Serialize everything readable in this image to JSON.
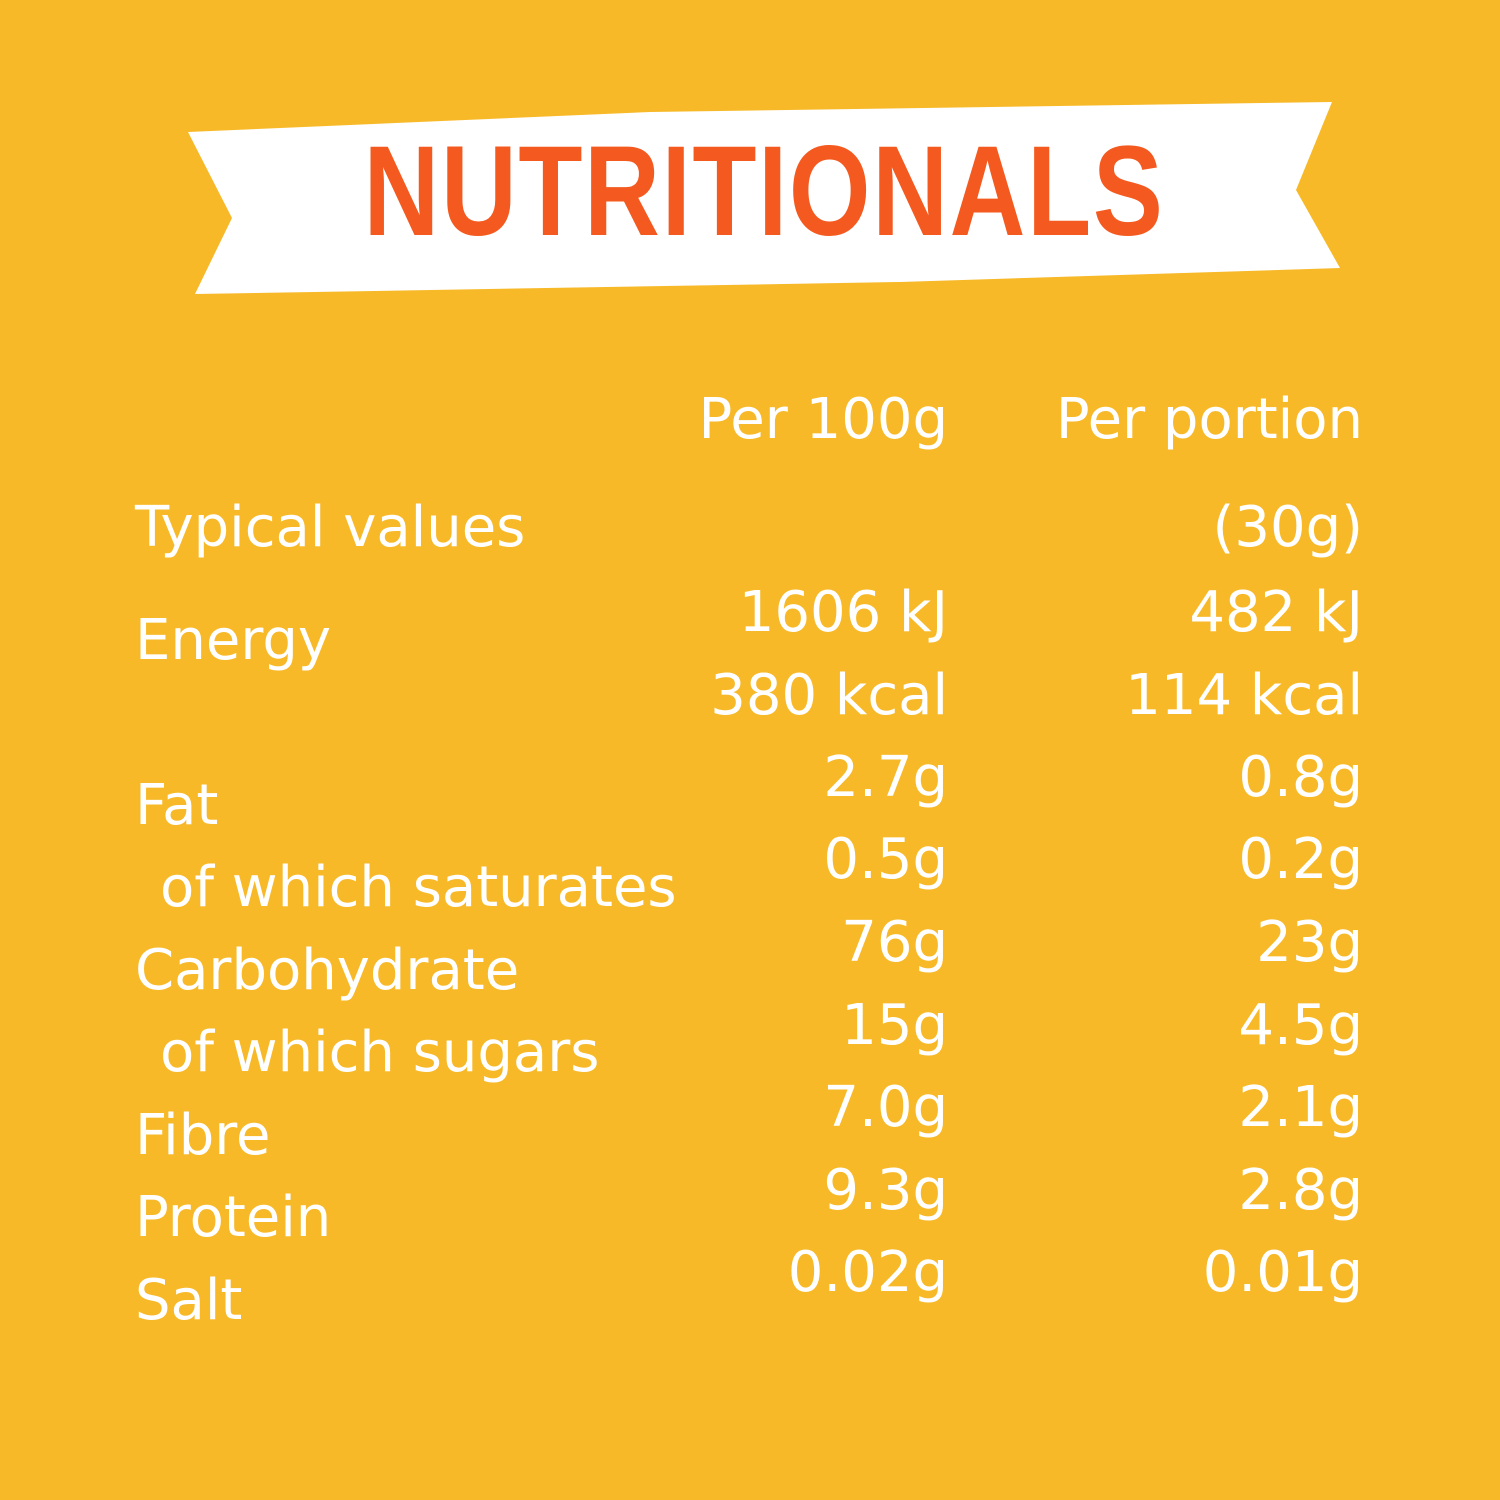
{
  "title": "NUTRITIONALS",
  "colors": {
    "background": "#F7B928",
    "banner": "#FFFFFF",
    "title": "#F45A1F",
    "text": "#FFFFFF"
  },
  "table": {
    "header": {
      "label": "Typical values",
      "col1": "Per 100g",
      "col2": "Per portion",
      "col2_sub": "(30g)"
    },
    "rows": [
      {
        "label": "Energy",
        "per100": "1606 kJ",
        "portion": "482 kJ",
        "per100_b": "380 kcal",
        "portion_b": "114 kcal"
      },
      {
        "label": "Fat",
        "per100": "2.7g",
        "portion": "0.8g"
      },
      {
        "label": "of which saturates",
        "per100": "0.5g",
        "portion": "0.2g"
      },
      {
        "label": "Carbohydrate",
        "per100": "76g",
        "portion": "23g"
      },
      {
        "label": "of which sugars",
        "per100": "15g",
        "portion": "4.5g"
      },
      {
        "label": "Fibre",
        "per100": "7.0g",
        "portion": "2.1g"
      },
      {
        "label": "Protein",
        "per100": "9.3g",
        "portion": "2.8g"
      },
      {
        "label": "Salt",
        "per100": "0.02g",
        "portion": "0.01g"
      }
    ]
  }
}
